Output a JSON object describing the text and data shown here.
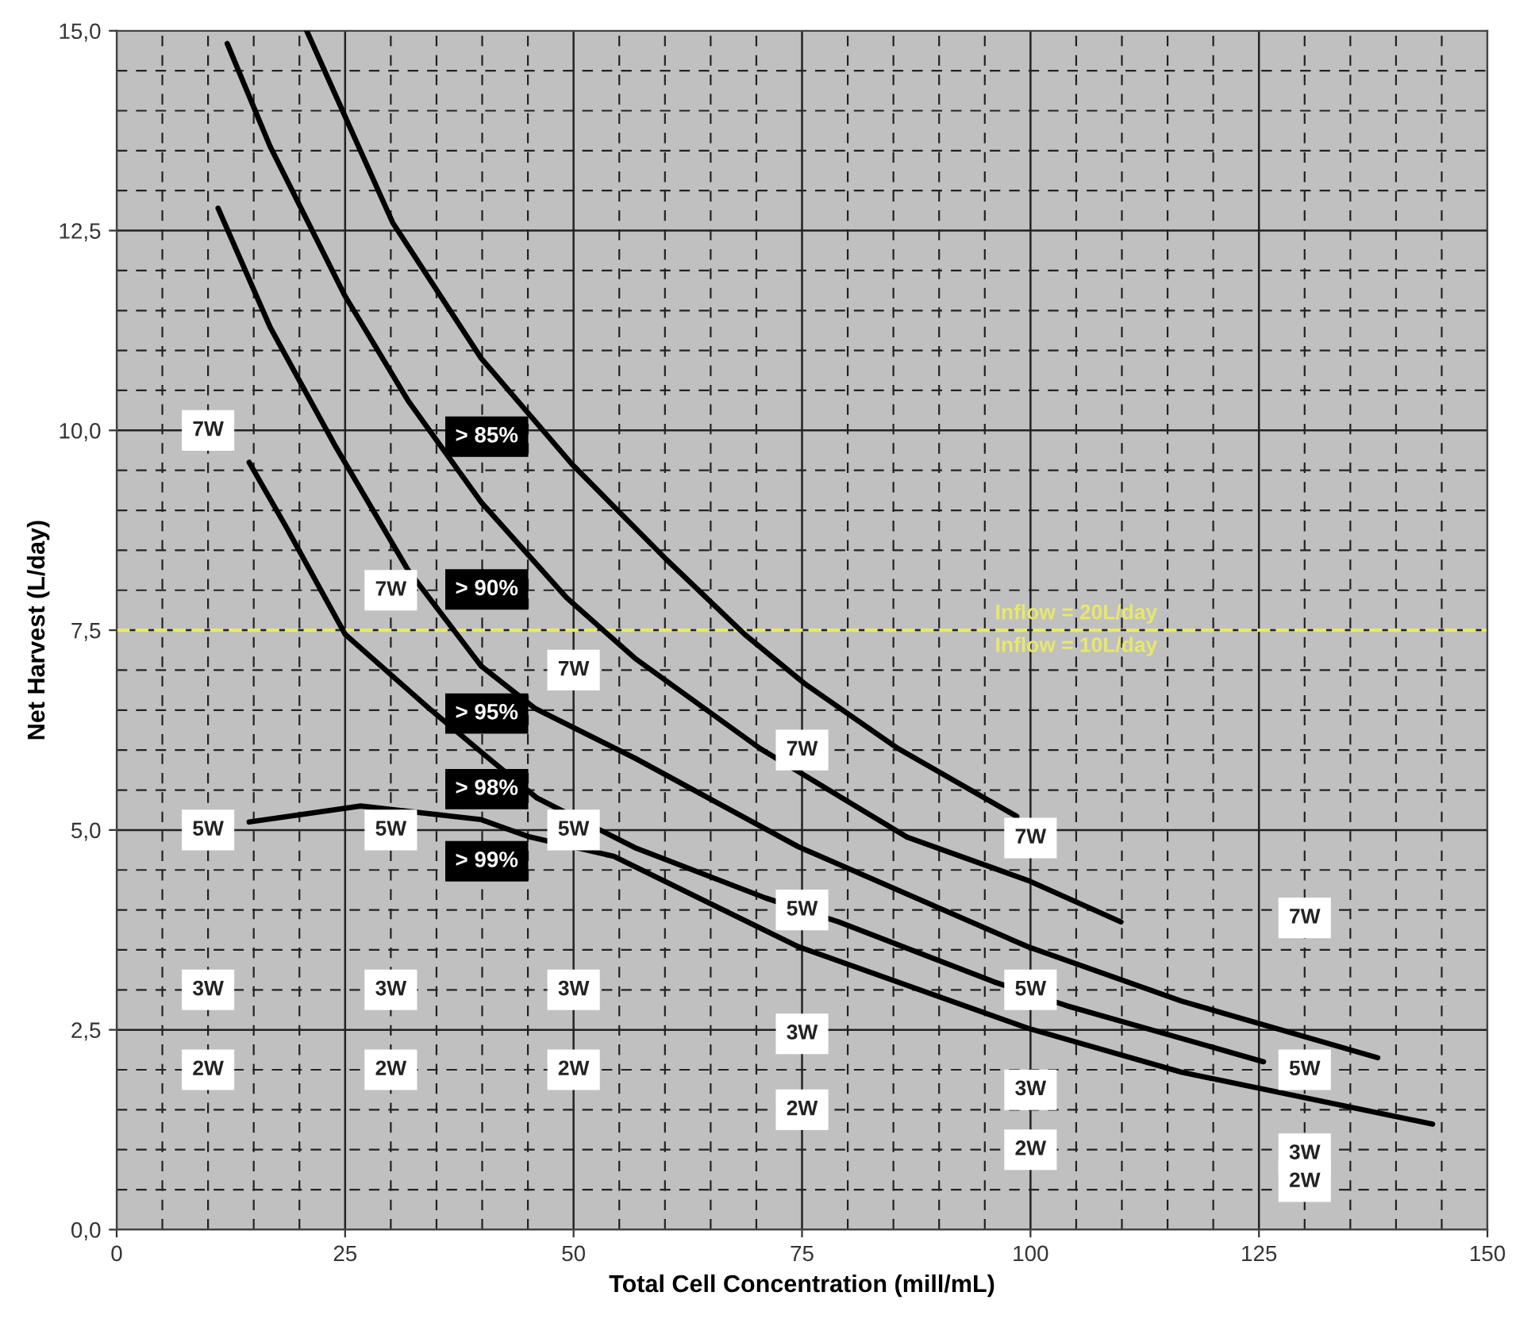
{
  "chart_data": {
    "type": "line",
    "xlabel": "Total Cell Concentration (mill/mL)",
    "ylabel": "Net Harvest (L/day)",
    "xlim": [
      0,
      150
    ],
    "xticks": [
      0,
      25,
      50,
      75,
      100,
      125,
      150
    ],
    "ylim": [
      0,
      15
    ],
    "yticks": [
      {
        "value": 0,
        "label": "0,0"
      },
      {
        "value": 2.5,
        "label": "2,5"
      },
      {
        "value": 5,
        "label": "5,0"
      },
      {
        "value": 7.5,
        "label": "7,5"
      },
      {
        "value": 10,
        "label": "10,0"
      },
      {
        "value": 12.5,
        "label": "12,5"
      },
      {
        "value": 15,
        "label": "15,0"
      }
    ],
    "grid": true,
    "legend": false,
    "marker": "none",
    "line_style": "solid",
    "series": [
      {
        "name": "> 85%",
        "color": "#000000",
        "x": [
          20.8,
          30.2,
          39.9,
          49.8,
          60.2,
          68.7,
          75.3,
          85.5,
          98.5
        ],
        "values": [
          15.0,
          12.6,
          10.9,
          9.58,
          8.38,
          7.45,
          6.83,
          6.02,
          5.17
        ]
      },
      {
        "name": "> 90%",
        "color": "#000000",
        "x": [
          12.1,
          16.8,
          25.0,
          31.9,
          39.9,
          49.2,
          56.7,
          70.4,
          86.5,
          99.7,
          109.9
        ],
        "values": [
          14.84,
          13.55,
          11.68,
          10.37,
          9.1,
          7.91,
          7.15,
          6.02,
          4.91,
          4.37,
          3.85
        ]
      },
      {
        "name": "> 95%",
        "color": "#000000",
        "x": [
          11.1,
          16.8,
          23.8,
          31.9,
          39.9,
          45.8,
          56.7,
          74.6,
          99.7,
          116.5,
          138.0
        ],
        "values": [
          12.78,
          11.29,
          9.83,
          8.25,
          7.05,
          6.52,
          5.9,
          4.79,
          3.54,
          2.86,
          2.15
        ]
      },
      {
        "name": "> 98%",
        "color": "#000000",
        "x": [
          14.5,
          18.6,
          25.0,
          34.2,
          41.1,
          46.0,
          56.7,
          71.0,
          79.0,
          96.0,
          104.0,
          125.5
        ],
        "values": [
          9.6,
          8.78,
          7.45,
          6.52,
          5.86,
          5.4,
          4.78,
          4.15,
          3.85,
          3.1,
          2.8,
          2.1
        ]
      },
      {
        "name": "> 99%",
        "color": "#000000",
        "x": [
          14.5,
          26.7,
          39.9,
          45.0,
          54.4,
          74.6,
          99.7,
          116.5,
          144.0
        ],
        "values": [
          5.1,
          5.3,
          5.13,
          4.92,
          4.67,
          3.54,
          2.52,
          1.97,
          1.32
        ]
      }
    ],
    "ref_lines": [
      {
        "axis": "y",
        "value": 7.5,
        "color": "#e8e86a",
        "line_style": "dashed"
      }
    ],
    "annotations": [
      "Inflow = 20L/day",
      "Inflow = 10L/day",
      "7W",
      "5W",
      {
        "text": "7W",
        "x": 10,
        "y": 10
      },
      {
        "text": "7W",
        "x": 30,
        "y": 8
      },
      {
        "text": "7W",
        "x": 75,
        "y": 6
      },
      {
        "text": "7W",
        "x": 100,
        "y": 4.9
      },
      {
        "text": "7W",
        "x": 130,
        "y": 3.9
      },
      {
        "text": "5W",
        "x": 10,
        "y": 5
      },
      {
        "text": "5W",
        "x": 30,
        "y": 5
      },
      {
        "text": "5W",
        "x": 75,
        "y": 4
      },
      {
        "text": "5W",
        "x": 100,
        "y": 3
      },
      {
        "text": "5W",
        "x": 130,
        "y": 2
      },
      {
        "text": "3W",
        "x": 10,
        "y": 3
      },
      {
        "text": "3W",
        "x": 30,
        "y": 3
      },
      {
        "text": "3W",
        "x": 50,
        "y": 3
      },
      {
        "text": "3W",
        "x": 75,
        "y": 2.45
      },
      {
        "text": "3W",
        "x": 100,
        "y": 1.75
      },
      {
        "text": "3W",
        "x": 130,
        "y": 0.95
      },
      {
        "text": "2W",
        "x": 10,
        "y": 2
      },
      {
        "text": "2W",
        "x": 30,
        "y": 2
      },
      {
        "text": "2W",
        "x": 50,
        "y": 2
      },
      {
        "text": "2W",
        "x": 75,
        "y": 1.5
      },
      {
        "text": "2W",
        "x": 100,
        "y": 1
      },
      {
        "text": "2W",
        "x": 130,
        "y": 0.6
      }
    ]
  }
}
